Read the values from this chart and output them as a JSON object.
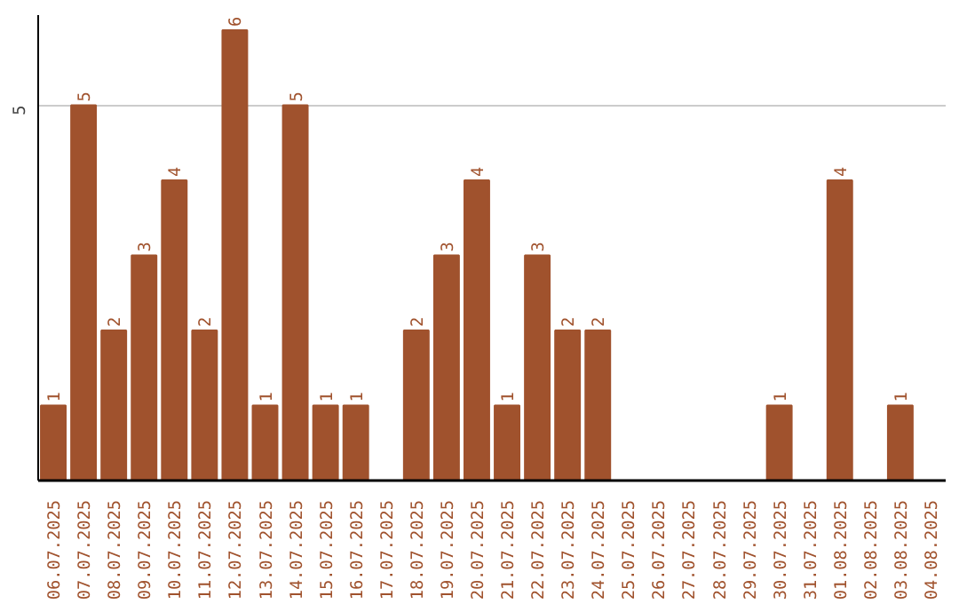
{
  "chart_data": {
    "type": "bar",
    "categories": [
      "06.07.2025",
      "07.07.2025",
      "08.07.2025",
      "09.07.2025",
      "10.07.2025",
      "11.07.2025",
      "12.07.2025",
      "13.07.2025",
      "14.07.2025",
      "15.07.2025",
      "16.07.2025",
      "17.07.2025",
      "18.07.2025",
      "19.07.2025",
      "20.07.2025",
      "21.07.2025",
      "22.07.2025",
      "23.07.2025",
      "24.07.2025",
      "25.07.2025",
      "26.07.2025",
      "27.07.2025",
      "28.07.2025",
      "29.07.2025",
      "30.07.2025",
      "31.07.2025",
      "01.08.2025",
      "02.08.2025",
      "03.08.2025",
      "04.08.2025"
    ],
    "values": [
      1,
      5,
      2,
      3,
      4,
      2,
      6,
      1,
      5,
      1,
      1,
      0,
      2,
      3,
      4,
      1,
      3,
      2,
      2,
      0,
      0,
      0,
      0,
      0,
      1,
      0,
      4,
      0,
      1,
      0
    ],
    "value_labels": [
      "1",
      "5",
      "2",
      "3",
      "4",
      "2",
      "6",
      "1",
      "5",
      "1",
      "1",
      null,
      "2",
      "3",
      "4",
      "1",
      "3",
      "2",
      "2",
      null,
      null,
      null,
      null,
      null,
      "1",
      null,
      "4",
      null,
      "1",
      null
    ],
    "color": "#a0522d",
    "ylim": [
      0,
      6.2
    ],
    "yticks": [
      5
    ],
    "grid": "y"
  }
}
